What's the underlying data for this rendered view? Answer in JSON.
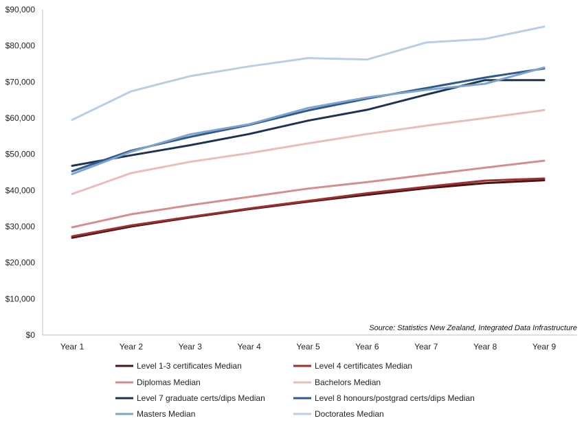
{
  "chart_data": {
    "type": "line",
    "title": "",
    "xlabel": "",
    "ylabel": "",
    "categories": [
      "Year 1",
      "Year 2",
      "Year 3",
      "Year 4",
      "Year 5",
      "Year 6",
      "Year 7",
      "Year 8",
      "Year 9"
    ],
    "ylim": [
      0,
      90000
    ],
    "yticks": [
      0,
      10000,
      20000,
      30000,
      40000,
      50000,
      60000,
      70000,
      80000,
      90000
    ],
    "ytick_labels": [
      "$0",
      "$10,000",
      "$20,000",
      "$30,000",
      "$40,000",
      "$50,000",
      "$60,000",
      "$70,000",
      "$80,000",
      "$90,000"
    ],
    "grid": false,
    "legend_position": "bottom",
    "source_note": "Source: Statistics New Zealand, Integrated Data Infrastructure",
    "series": [
      {
        "name": "Level 1-3 certificates Median",
        "color": "#4a1414",
        "values": [
          26900,
          30000,
          32500,
          34800,
          36900,
          38800,
          40600,
          42000,
          42800
        ]
      },
      {
        "name": "Level 4 certificates Median",
        "color": "#9b3030",
        "values": [
          27300,
          30300,
          32700,
          35000,
          37100,
          39200,
          41000,
          42700,
          43300
        ]
      },
      {
        "name": "Diplomas Median",
        "color": "#d48e8e",
        "values": [
          29800,
          33400,
          35900,
          38200,
          40500,
          42300,
          44300,
          46300,
          48200
        ]
      },
      {
        "name": "Bachelors Median",
        "color": "#ebbcbc",
        "values": [
          39000,
          44800,
          47900,
          50300,
          53000,
          55600,
          57900,
          60000,
          62200
        ]
      },
      {
        "name": "Level 7 graduate certs/dips Median",
        "color": "#1c3452",
        "values": [
          46800,
          49700,
          52500,
          55600,
          59300,
          62300,
          66500,
          70500,
          70500
        ]
      },
      {
        "name": "Level 8 honours/postgrad certs/dips Median",
        "color": "#2f5a8c",
        "values": [
          45300,
          51000,
          54800,
          58100,
          62100,
          65400,
          68300,
          71200,
          73700
        ]
      },
      {
        "name": "Masters Median",
        "color": "#7fa3cc",
        "values": [
          44500,
          50700,
          55500,
          58300,
          62800,
          65700,
          67800,
          69500,
          74000
        ]
      },
      {
        "name": "Doctorates Median",
        "color": "#b9cde5",
        "values": [
          59500,
          67400,
          71600,
          74300,
          76600,
          76200,
          80900,
          81900,
          85300
        ]
      }
    ]
  }
}
